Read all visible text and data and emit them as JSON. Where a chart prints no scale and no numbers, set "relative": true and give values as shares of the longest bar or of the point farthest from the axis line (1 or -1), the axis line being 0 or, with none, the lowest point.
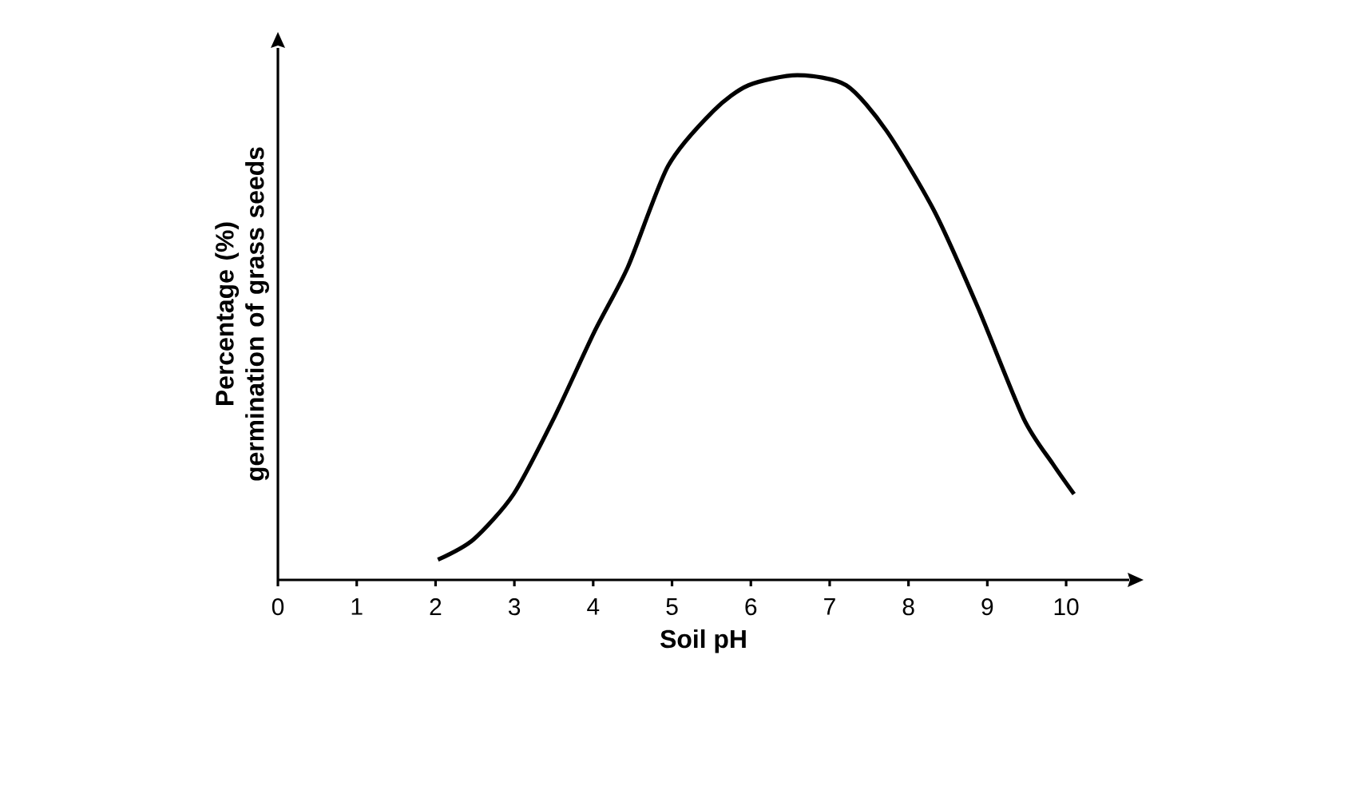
{
  "chart_data": {
    "type": "line",
    "relative": true,
    "xlabel": "Soil pH",
    "ylabel": "Percentage (%) germination of grass seeds",
    "xlim": [
      0,
      10.8
    ],
    "xticks": [
      0,
      1,
      2,
      3,
      4,
      5,
      6,
      7,
      8,
      9,
      10
    ],
    "x": [
      2.03,
      2.48,
      2.99,
      3.5,
      4.01,
      4.44,
      4.95,
      5.53,
      5.97,
      6.59,
      7.21,
      7.72,
      8.33,
      8.88,
      9.46,
      9.83,
      10.1
    ],
    "series": [
      {
        "color": "#000000",
        "values": [
          0.04,
          0.08,
          0.17,
          0.32,
          0.49,
          0.62,
          0.82,
          0.93,
          0.98,
          1.0,
          0.98,
          0.89,
          0.73,
          0.54,
          0.32,
          0.23,
          0.17
        ]
      }
    ]
  }
}
